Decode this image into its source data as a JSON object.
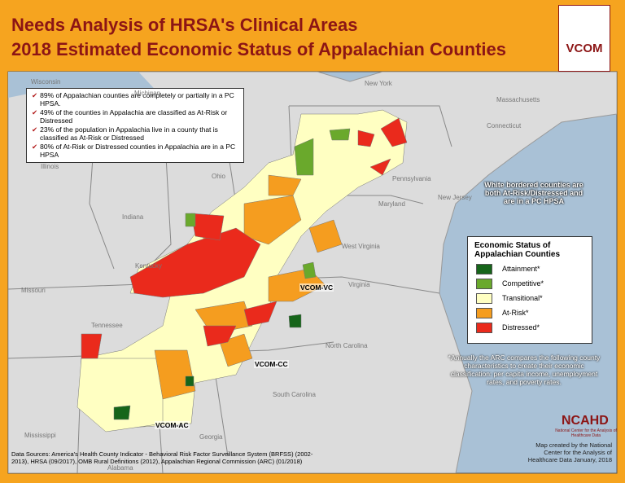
{
  "header": {
    "title": "Needs Analysis of HRSA's Clinical Areas",
    "subtitle": "2018 Estimated Economic Status of Appalachian Counties",
    "logo": "VCOM"
  },
  "facts": [
    "89% of Appalachian counties are completely or partially in a PC HPSA.",
    "49% of the counties in Appalachia are classified as At-Risk or Distressed",
    "23% of the population in Appalachia live in a county that is classified as At-Risk or Distressed",
    "80% of At-Risk or Distressed counties in Appalachia are in a PC HPSA"
  ],
  "callout": "White bordered counties are both At-Risk/Distressed and are in a PC HPSA",
  "legend": {
    "title": "Economic Status of Appalachian Counties",
    "items": [
      {
        "label": "Attainment*",
        "color": "#16651a"
      },
      {
        "label": "Competitive*",
        "color": "#6aa92c"
      },
      {
        "label": "Transitional*",
        "color": "#ffffc2"
      },
      {
        "label": "At-Risk*",
        "color": "#f59d1f"
      },
      {
        "label": "Distressed*",
        "color": "#ea2a1c"
      }
    ]
  },
  "note": "*Annually the ARC compares the following county characteristics to create their economic classification: per capita income, unemployment rates, and poverty rates.",
  "campuses": [
    "VCOM-VC",
    "VCOM-CC",
    "VCOM-AC"
  ],
  "states": [
    "Wisconsin",
    "Michigan",
    "New York",
    "Massachusetts",
    "Connecticut",
    "Illinois",
    "Indiana",
    "Ohio",
    "Pennsylvania",
    "New Jersey",
    "Maryland",
    "West Virginia",
    "Kentucky",
    "Virginia",
    "Missouri",
    "Tennessee",
    "North Carolina",
    "South Carolina",
    "Mississippi",
    "Alabama",
    "Georgia"
  ],
  "sources": "Data Sources: America's Health County Indicator - Behavioral Risk Factor Surveillance System (BRFSS) (2002-2013), HRSA (09/2017), OMB Rural Definitions (2012), Appalachian Regional Commission (ARC) (01/2018)",
  "credit": {
    "logo": "NCAHD",
    "logo_sub": "National Center for the Analysis of Healthcare Data",
    "text": "Map created by the National Center for the Analysis of Healthcare Data January, 2018"
  }
}
